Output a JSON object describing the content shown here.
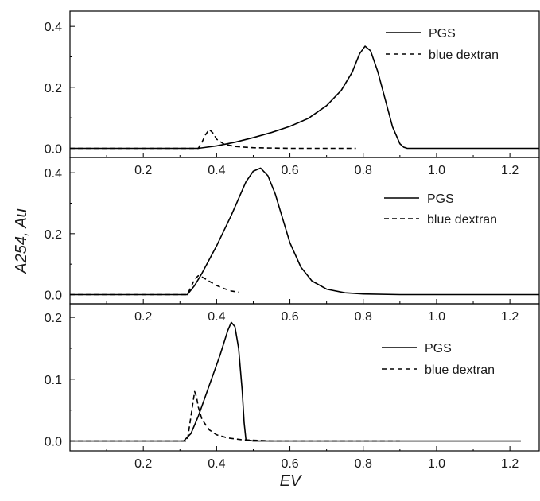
{
  "figure": {
    "xlabel": "EV",
    "ylabel": "A254, Au"
  },
  "chart_data": [
    {
      "type": "line",
      "xlim": [
        0.0,
        1.28
      ],
      "ylim": [
        -0.03,
        0.45
      ],
      "xticks": [
        0.2,
        0.4,
        0.6,
        0.8,
        1.0,
        1.2
      ],
      "xtick_labels": [
        "0.2",
        "0.4",
        "0.6",
        "0.8",
        "1.0",
        "1.2"
      ],
      "yticks": [
        0.0,
        0.2,
        0.4
      ],
      "ytick_labels": [
        "0.0",
        "0.2",
        "0.4"
      ],
      "legend_position": "top-right",
      "series": [
        {
          "name": "PGS",
          "style": "solid",
          "color": "#000000",
          "x": [
            0.0,
            0.35,
            0.4,
            0.45,
            0.5,
            0.55,
            0.6,
            0.65,
            0.7,
            0.74,
            0.77,
            0.79,
            0.805,
            0.82,
            0.84,
            0.86,
            0.88,
            0.9,
            0.91,
            0.92,
            0.95,
            1.28
          ],
          "y": [
            0.0,
            0.0,
            0.008,
            0.02,
            0.035,
            0.052,
            0.072,
            0.098,
            0.14,
            0.19,
            0.25,
            0.31,
            0.335,
            0.32,
            0.25,
            0.16,
            0.07,
            0.015,
            0.004,
            0.0,
            0.0,
            0.0
          ]
        },
        {
          "name": "blue dextran",
          "style": "dashed",
          "color": "#000000",
          "x": [
            0.0,
            0.35,
            0.36,
            0.37,
            0.38,
            0.39,
            0.4,
            0.42,
            0.45,
            0.5,
            0.6,
            0.7,
            0.78
          ],
          "y": [
            0.0,
            0.0,
            0.02,
            0.045,
            0.062,
            0.05,
            0.03,
            0.014,
            0.006,
            0.002,
            0.0,
            0.0,
            0.0
          ]
        }
      ]
    },
    {
      "type": "line",
      "xlim": [
        0.0,
        1.28
      ],
      "ylim": [
        -0.03,
        0.45
      ],
      "xticks": [
        0.2,
        0.4,
        0.6,
        0.8,
        1.0,
        1.2
      ],
      "xtick_labels": [
        "0.2",
        "0.4",
        "0.6",
        "0.8",
        "1.0",
        "1.2"
      ],
      "yticks": [
        0.0,
        0.2,
        0.4
      ],
      "ytick_labels": [
        "0.0",
        "0.2",
        "0.4"
      ],
      "legend_position": "top-right",
      "series": [
        {
          "name": "PGS",
          "style": "solid",
          "color": "#000000",
          "x": [
            0.0,
            0.32,
            0.34,
            0.36,
            0.4,
            0.44,
            0.48,
            0.5,
            0.52,
            0.54,
            0.56,
            0.58,
            0.6,
            0.63,
            0.66,
            0.7,
            0.75,
            0.8,
            0.9,
            1.0,
            1.28
          ],
          "y": [
            0.0,
            0.0,
            0.03,
            0.07,
            0.16,
            0.26,
            0.37,
            0.405,
            0.415,
            0.39,
            0.33,
            0.25,
            0.17,
            0.09,
            0.045,
            0.018,
            0.006,
            0.002,
            0.0,
            0.0,
            0.0
          ]
        },
        {
          "name": "blue dextran",
          "style": "dashed",
          "color": "#000000",
          "x": [
            0.0,
            0.32,
            0.34,
            0.35,
            0.36,
            0.38,
            0.4,
            0.42,
            0.44,
            0.46
          ],
          "y": [
            0.0,
            0.0,
            0.05,
            0.062,
            0.058,
            0.044,
            0.03,
            0.02,
            0.012,
            0.008
          ]
        }
      ]
    },
    {
      "type": "line",
      "xlim": [
        0.0,
        1.28
      ],
      "ylim": [
        -0.016,
        0.222
      ],
      "xticks": [
        0.2,
        0.4,
        0.6,
        0.8,
        1.0,
        1.2
      ],
      "xtick_labels": [
        "0.2",
        "0.4",
        "0.6",
        "0.8",
        "1.0",
        "1.2"
      ],
      "yticks": [
        0.0,
        0.1,
        0.2
      ],
      "ytick_labels": [
        "0.0",
        "0.1",
        "0.2"
      ],
      "legend_position": "right",
      "series": [
        {
          "name": "PGS",
          "style": "solid",
          "color": "#000000",
          "x": [
            0.0,
            0.31,
            0.33,
            0.35,
            0.38,
            0.41,
            0.43,
            0.44,
            0.45,
            0.46,
            0.47,
            0.475,
            0.48,
            0.5,
            1.23
          ],
          "y": [
            0.0,
            0.0,
            0.012,
            0.04,
            0.09,
            0.14,
            0.178,
            0.192,
            0.185,
            0.15,
            0.08,
            0.03,
            0.002,
            0.0,
            0.0
          ]
        },
        {
          "name": "blue dextran",
          "style": "dashed",
          "color": "#000000",
          "x": [
            0.0,
            0.32,
            0.33,
            0.34,
            0.345,
            0.35,
            0.36,
            0.38,
            0.4,
            0.43,
            0.47,
            0.55,
            0.7,
            0.9
          ],
          "y": [
            0.0,
            0.0,
            0.04,
            0.08,
            0.072,
            0.055,
            0.035,
            0.018,
            0.01,
            0.005,
            0.002,
            0.0,
            0.0,
            0.0
          ]
        }
      ]
    }
  ]
}
